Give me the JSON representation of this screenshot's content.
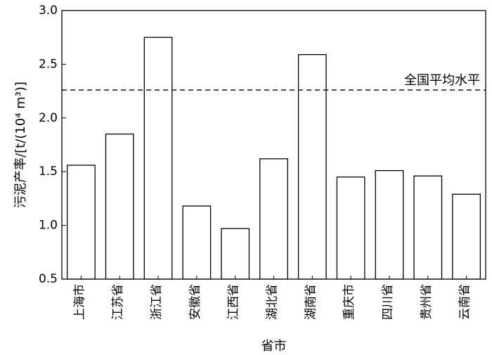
{
  "chart_data": {
    "type": "bar",
    "categories": [
      "上海市",
      "江苏省",
      "浙江省",
      "安徽省",
      "江西省",
      "湖北省",
      "湖南省",
      "重庆市",
      "四川省",
      "贵州省",
      "云南省"
    ],
    "values": [
      1.56,
      1.85,
      2.75,
      1.18,
      0.97,
      1.62,
      2.59,
      1.45,
      1.51,
      1.46,
      1.29
    ],
    "xlabel": "省市",
    "ylabel": "污泥产率/[t/(10⁴ m³)]",
    "ylim": [
      0.5,
      3.0
    ],
    "yticks": [
      "0.5",
      "1.0",
      "1.5",
      "2.0",
      "2.5",
      "3.0"
    ],
    "reference_line": {
      "value": 2.26,
      "label": "全国平均水平",
      "style": "dashed"
    },
    "bar_fill": "#ffffff",
    "bar_stroke": "#000000",
    "grid": false
  }
}
